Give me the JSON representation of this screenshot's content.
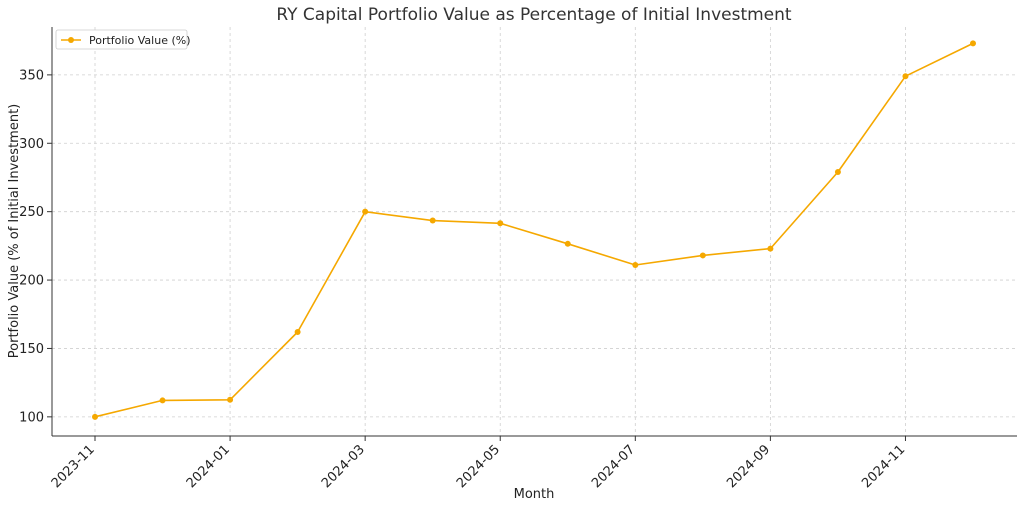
{
  "chart_data": {
    "type": "line",
    "title": "RY Capital Portfolio Value as Percentage of Initial Investment",
    "xlabel": "Month",
    "ylabel": "Portfolio Value (% of Initial Investment)",
    "x": [
      "2023-11",
      "2023-12",
      "2024-01",
      "2024-02",
      "2024-03",
      "2024-04",
      "2024-05",
      "2024-06",
      "2024-07",
      "2024-08",
      "2024-09",
      "2024-10",
      "2024-11",
      "2024-12"
    ],
    "x_tick_labels": [
      "2023-11",
      "2024-01",
      "2024-03",
      "2024-05",
      "2024-07",
      "2024-09",
      "2024-11"
    ],
    "y_ticks": [
      100,
      150,
      200,
      250,
      300,
      350
    ],
    "ylim": [
      86,
      385
    ],
    "grid": true,
    "legend_position": "top-left",
    "series": [
      {
        "name": "Portfolio Value (%)",
        "color": "#f5a800",
        "values": [
          100,
          112,
          112.5,
          162,
          250,
          243.5,
          241.5,
          226.5,
          211,
          218,
          223,
          279,
          349,
          373
        ]
      }
    ]
  }
}
